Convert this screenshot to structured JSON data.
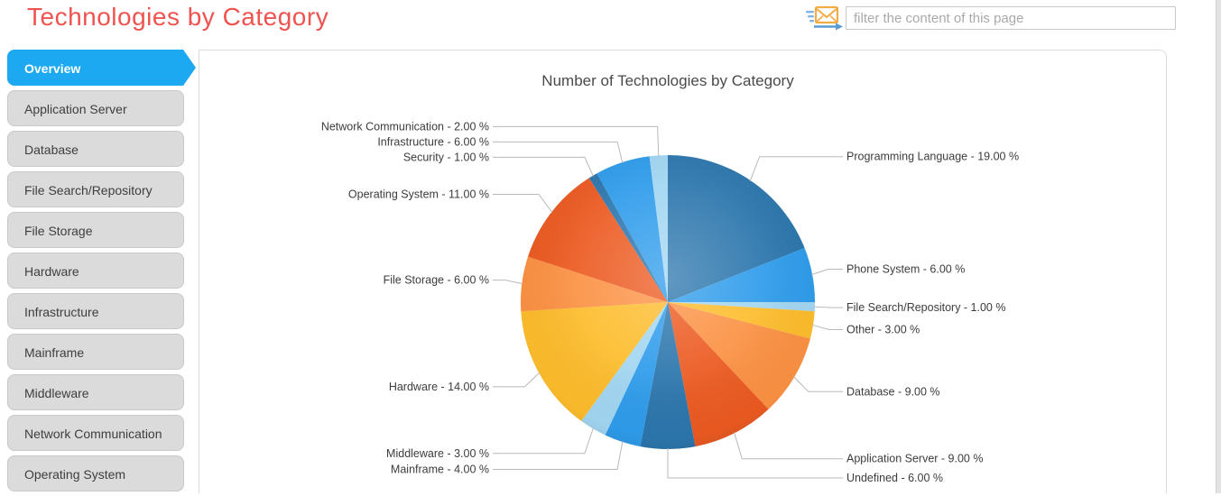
{
  "header": {
    "title": "Technologies by Category",
    "filter": {
      "placeholder": "filter the content of this page",
      "value": ""
    },
    "filter_icon": "send-mail-icon"
  },
  "sidebar": {
    "items": [
      {
        "label": "Overview",
        "active": true
      },
      {
        "label": "Application Server",
        "active": false
      },
      {
        "label": "Database",
        "active": false
      },
      {
        "label": "File Search/Repository",
        "active": false
      },
      {
        "label": "File Storage",
        "active": false
      },
      {
        "label": "Hardware",
        "active": false
      },
      {
        "label": "Infrastructure",
        "active": false
      },
      {
        "label": "Mainframe",
        "active": false
      },
      {
        "label": "Middleware",
        "active": false
      },
      {
        "label": "Network Communication",
        "active": false
      },
      {
        "label": "Operating System",
        "active": false
      }
    ]
  },
  "colors": {
    "active_tab_blue": "#1ca9f1",
    "title_red": "#ef5350",
    "dark_blue": "#2c76ad",
    "bright_blue": "#2f9ceb",
    "light_blue": "#a2d6f2",
    "gold": "#fdbc2c",
    "orange": "#fb9143",
    "red_orange": "#ec5a21"
  },
  "chart_data": {
    "type": "pie",
    "title": "Number of Technologies by Category",
    "legend_position": "none",
    "value_decimals": 2,
    "value_suffix": " %",
    "label_format": "{name} - {value} %",
    "start_angle_deg": 0,
    "direction": "clockwise",
    "slices": [
      {
        "label": "Programming Language",
        "value": 19.0,
        "color": "#2c76ad"
      },
      {
        "label": "Phone System",
        "value": 6.0,
        "color": "#2f9ceb"
      },
      {
        "label": "File Search/Repository",
        "value": 1.0,
        "color": "#a2d6f2"
      },
      {
        "label": "Other",
        "value": 3.0,
        "color": "#fdbc2c"
      },
      {
        "label": "Database",
        "value": 9.0,
        "color": "#fb9143"
      },
      {
        "label": "Application Server",
        "value": 9.0,
        "color": "#ec5a21"
      },
      {
        "label": "Undefined",
        "value": 6.0,
        "color": "#2c76ad"
      },
      {
        "label": "Mainframe",
        "value": 4.0,
        "color": "#2f9ceb"
      },
      {
        "label": "Middleware",
        "value": 3.0,
        "color": "#a2d6f2"
      },
      {
        "label": "Hardware",
        "value": 14.0,
        "color": "#fdbc2c"
      },
      {
        "label": "File Storage",
        "value": 6.0,
        "color": "#fb9143"
      },
      {
        "label": "Operating System",
        "value": 11.0,
        "color": "#ec5a21"
      },
      {
        "label": "Security",
        "value": 1.0,
        "color": "#2c76ad"
      },
      {
        "label": "Infrastructure",
        "value": 6.0,
        "color": "#2f9ceb"
      },
      {
        "label": "Network Communication",
        "value": 2.0,
        "color": "#a2d6f2"
      }
    ]
  }
}
